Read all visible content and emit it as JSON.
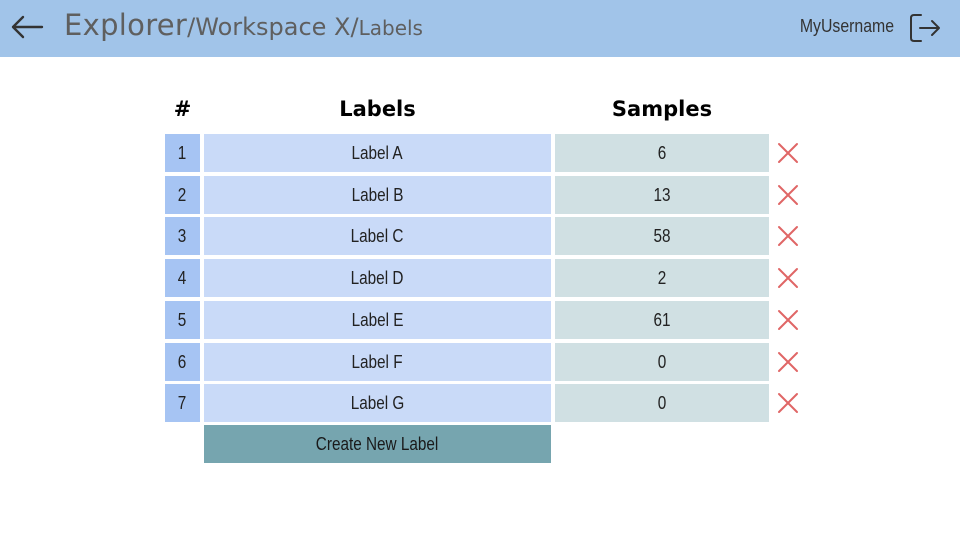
{
  "header": {
    "breadcrumb": {
      "root": "Explorer",
      "separator": "/",
      "workspace": "Workspace X",
      "current": "Labels"
    },
    "username": "MyUsername",
    "icons": {
      "back": "arrow-left-icon",
      "logout": "logout-icon"
    }
  },
  "table": {
    "columns": {
      "index": "#",
      "labels": "Labels",
      "samples": "Samples"
    },
    "rows": [
      {
        "index": "1",
        "label": "Label A",
        "samples": "6"
      },
      {
        "index": "2",
        "label": "Label B",
        "samples": "13"
      },
      {
        "index": "3",
        "label": "Label C",
        "samples": "58"
      },
      {
        "index": "4",
        "label": "Label D",
        "samples": "2"
      },
      {
        "index": "5",
        "label": "Label E",
        "samples": "61"
      },
      {
        "index": "6",
        "label": "Label F",
        "samples": "0"
      },
      {
        "index": "7",
        "label": "Label G",
        "samples": "0"
      }
    ],
    "delete_icon": "close-icon"
  },
  "actions": {
    "create_label": "Create New Label"
  },
  "colors": {
    "header_bg": "#a1c4e9",
    "index_cell": "#a6c4f3",
    "label_cell": "#c9daf8",
    "samples_cell": "#d0e0e3",
    "create_button": "#76a5af",
    "delete": "#e06666"
  }
}
